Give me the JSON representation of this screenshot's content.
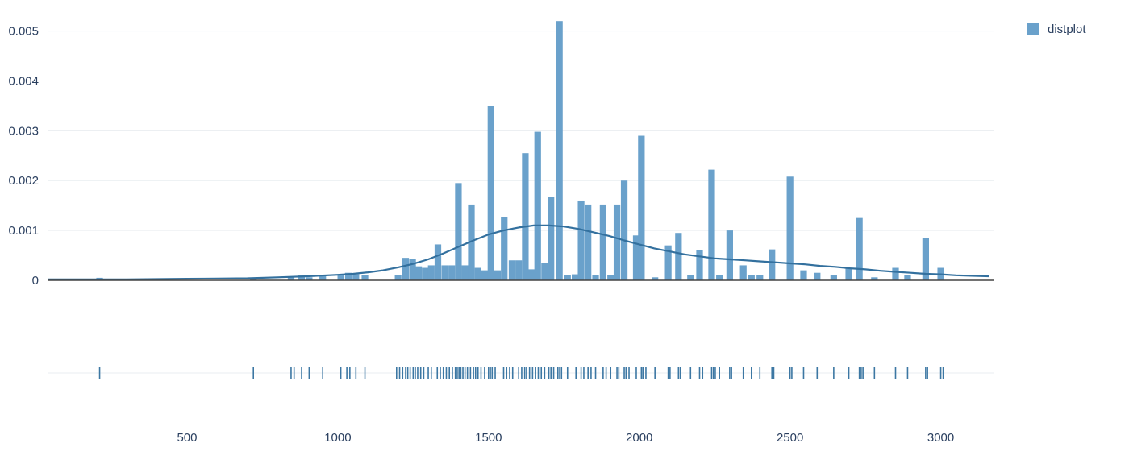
{
  "legend": {
    "items": [
      {
        "label": "distplot",
        "color": "#6AA1CB"
      }
    ]
  },
  "colors": {
    "bar": "#6AA1CB",
    "kde_line": "#33709E",
    "rug": "#3C77A3",
    "grid": "#E9EDF1",
    "axis_line": "#444444",
    "tick_text": "#2A3F5F",
    "background": "#FFFFFF"
  },
  "chart_data": {
    "type": "bar",
    "subtype": "distplot (histogram + kde curve + rug)",
    "title": "",
    "xlabel": "",
    "ylabel": "",
    "legend_position": "top-right",
    "grid": "horizontal-only",
    "x_ticks": [
      500,
      1000,
      1500,
      2000,
      2500,
      3000
    ],
    "y_ticks": [
      0,
      0.001,
      0.002,
      0.003,
      0.004,
      0.005
    ],
    "x_range": [
      40,
      3175
    ],
    "y_range": [
      0,
      0.0053
    ],
    "bin_width": 22,
    "bars": [
      [
        210,
        5e-05
      ],
      [
        720,
        4e-05
      ],
      [
        845,
        8e-05
      ],
      [
        880,
        0.0001
      ],
      [
        905,
        6e-05
      ],
      [
        950,
        0.0001
      ],
      [
        1010,
        0.0001
      ],
      [
        1035,
        0.00015
      ],
      [
        1060,
        0.00012
      ],
      [
        1090,
        0.0001
      ],
      [
        1200,
        0.0001
      ],
      [
        1225,
        0.00045
      ],
      [
        1248,
        0.00042
      ],
      [
        1268,
        0.00028
      ],
      [
        1290,
        0.00025
      ],
      [
        1310,
        0.0003
      ],
      [
        1332,
        0.00072
      ],
      [
        1355,
        0.0003
      ],
      [
        1378,
        0.0003
      ],
      [
        1400,
        0.00195
      ],
      [
        1422,
        0.0003
      ],
      [
        1443,
        0.00152
      ],
      [
        1465,
        0.00025
      ],
      [
        1487,
        0.0002
      ],
      [
        1508,
        0.0035
      ],
      [
        1530,
        0.0002
      ],
      [
        1552,
        0.00127
      ],
      [
        1578,
        0.0004
      ],
      [
        1600,
        0.0004
      ],
      [
        1622,
        0.00255
      ],
      [
        1643,
        0.00022
      ],
      [
        1663,
        0.00298
      ],
      [
        1686,
        0.00035
      ],
      [
        1707,
        0.00168
      ],
      [
        1735,
        0.0052
      ],
      [
        1762,
        0.0001
      ],
      [
        1787,
        0.00012
      ],
      [
        1807,
        0.0016
      ],
      [
        1830,
        0.00152
      ],
      [
        1855,
        0.0001
      ],
      [
        1880,
        0.00152
      ],
      [
        1905,
        0.0001
      ],
      [
        1926,
        0.00152
      ],
      [
        1950,
        0.002
      ],
      [
        1990,
        0.0009
      ],
      [
        2007,
        0.0029
      ],
      [
        2052,
        6e-05
      ],
      [
        2096,
        0.0007
      ],
      [
        2130,
        0.00095
      ],
      [
        2170,
        0.0001
      ],
      [
        2200,
        0.0006
      ],
      [
        2240,
        0.00222
      ],
      [
        2266,
        0.0001
      ],
      [
        2300,
        0.001
      ],
      [
        2345,
        0.0003
      ],
      [
        2372,
        0.0001
      ],
      [
        2400,
        0.0001
      ],
      [
        2440,
        0.00062
      ],
      [
        2500,
        0.00208
      ],
      [
        2545,
        0.0002
      ],
      [
        2590,
        0.00015
      ],
      [
        2645,
        0.0001
      ],
      [
        2695,
        0.00025
      ],
      [
        2730,
        0.00125
      ],
      [
        2780,
        6e-05
      ],
      [
        2850,
        0.00025
      ],
      [
        2890,
        0.0001
      ],
      [
        2950,
        0.00085
      ],
      [
        3000,
        0.00025
      ]
    ],
    "kde": [
      [
        40,
        2e-05
      ],
      [
        200,
        2e-05
      ],
      [
        300,
        2e-05
      ],
      [
        400,
        2.5e-05
      ],
      [
        500,
        3e-05
      ],
      [
        600,
        3.5e-05
      ],
      [
        700,
        4e-05
      ],
      [
        800,
        6e-05
      ],
      [
        900,
        8e-05
      ],
      [
        1000,
        0.00011
      ],
      [
        1050,
        0.00013
      ],
      [
        1100,
        0.00016
      ],
      [
        1150,
        0.0002
      ],
      [
        1200,
        0.00026
      ],
      [
        1250,
        0.00033
      ],
      [
        1300,
        0.00042
      ],
      [
        1350,
        0.00054
      ],
      [
        1400,
        0.00067
      ],
      [
        1450,
        0.0008
      ],
      [
        1500,
        0.00092
      ],
      [
        1550,
        0.001
      ],
      [
        1600,
        0.00106
      ],
      [
        1650,
        0.0011
      ],
      [
        1700,
        0.0011
      ],
      [
        1750,
        0.00108
      ],
      [
        1800,
        0.00103
      ],
      [
        1850,
        0.00096
      ],
      [
        1900,
        0.00089
      ],
      [
        1950,
        0.0008
      ],
      [
        2000,
        0.00072
      ],
      [
        2050,
        0.00064
      ],
      [
        2100,
        0.00058
      ],
      [
        2150,
        0.00052
      ],
      [
        2200,
        0.00048
      ],
      [
        2250,
        0.00044
      ],
      [
        2300,
        0.00042
      ],
      [
        2350,
        0.0004
      ],
      [
        2400,
        0.00038
      ],
      [
        2450,
        0.00036
      ],
      [
        2500,
        0.00034
      ],
      [
        2550,
        0.00032
      ],
      [
        2600,
        0.00029
      ],
      [
        2650,
        0.00027
      ],
      [
        2700,
        0.00024
      ],
      [
        2750,
        0.00022
      ],
      [
        2800,
        0.00019
      ],
      [
        2850,
        0.00017
      ],
      [
        2900,
        0.00015
      ],
      [
        2950,
        0.00013
      ],
      [
        3000,
        0.00012
      ],
      [
        3050,
        0.0001
      ],
      [
        3100,
        9e-05
      ],
      [
        3160,
        8e-05
      ]
    ],
    "rug": [
      210,
      720,
      845,
      855,
      880,
      905,
      950,
      1010,
      1030,
      1040,
      1060,
      1090,
      1195,
      1205,
      1215,
      1225,
      1232,
      1240,
      1250,
      1257,
      1265,
      1275,
      1285,
      1300,
      1310,
      1330,
      1340,
      1350,
      1360,
      1370,
      1380,
      1390,
      1396,
      1402,
      1408,
      1415,
      1422,
      1430,
      1440,
      1450,
      1457,
      1465,
      1475,
      1487,
      1500,
      1506,
      1512,
      1522,
      1550,
      1560,
      1570,
      1580,
      1600,
      1610,
      1620,
      1626,
      1636,
      1646,
      1656,
      1665,
      1675,
      1686,
      1700,
      1707,
      1716,
      1730,
      1736,
      1742,
      1762,
      1790,
      1807,
      1816,
      1830,
      1840,
      1855,
      1880,
      1890,
      1905,
      1926,
      1932,
      1950,
      1956,
      1966,
      1990,
      2007,
      2012,
      2022,
      2052,
      2096,
      2102,
      2130,
      2136,
      2170,
      2200,
      2210,
      2240,
      2246,
      2252,
      2266,
      2300,
      2306,
      2345,
      2372,
      2400,
      2440,
      2446,
      2500,
      2506,
      2545,
      2590,
      2645,
      2695,
      2730,
      2736,
      2742,
      2780,
      2850,
      2890,
      2950,
      2956,
      3000,
      3008
    ]
  }
}
